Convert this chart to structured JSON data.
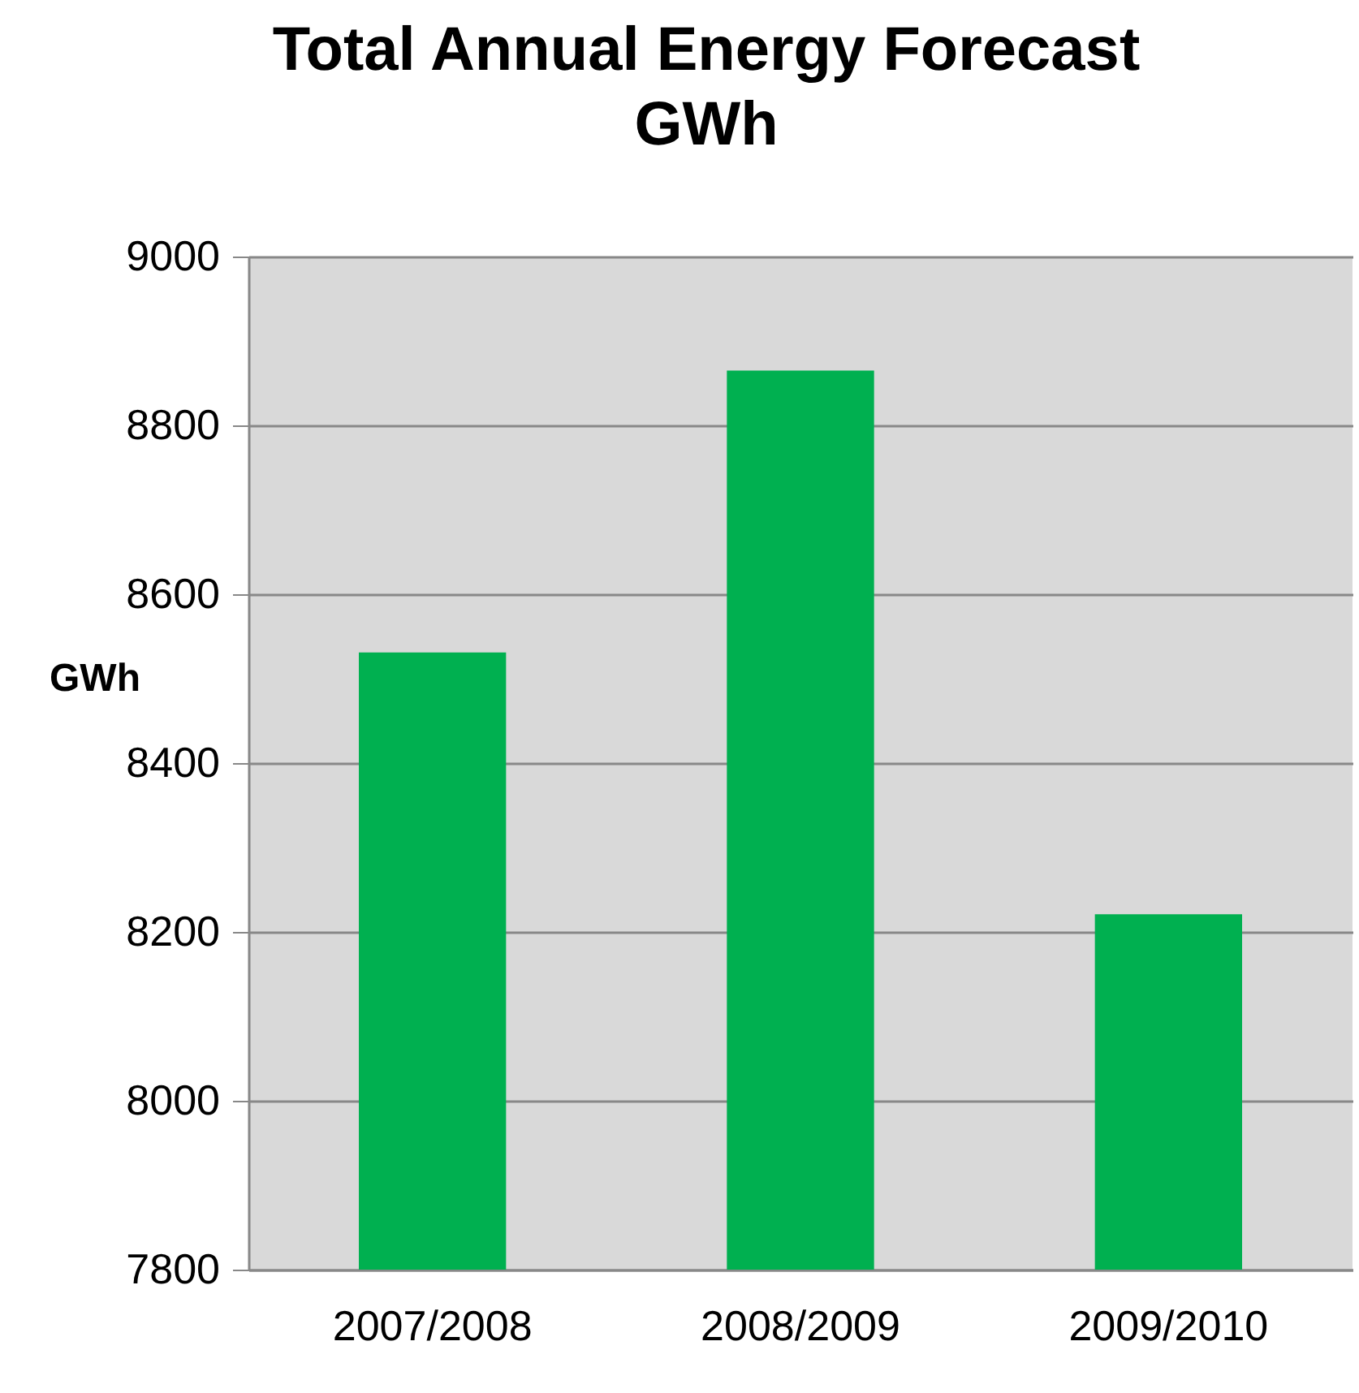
{
  "chart_data": {
    "type": "bar",
    "title": [
      "Total Annual Energy Forecast",
      "GWh"
    ],
    "ylabel": "GWh",
    "categories": [
      "2007/2008",
      "2008/2009",
      "2009/2010"
    ],
    "values": [
      8531,
      8865,
      8221
    ],
    "color": "#00b050",
    "ylim": [
      7800,
      9000
    ],
    "yticks": [
      7800,
      8000,
      8200,
      8400,
      8600,
      8800,
      9000
    ],
    "grid": "y"
  }
}
